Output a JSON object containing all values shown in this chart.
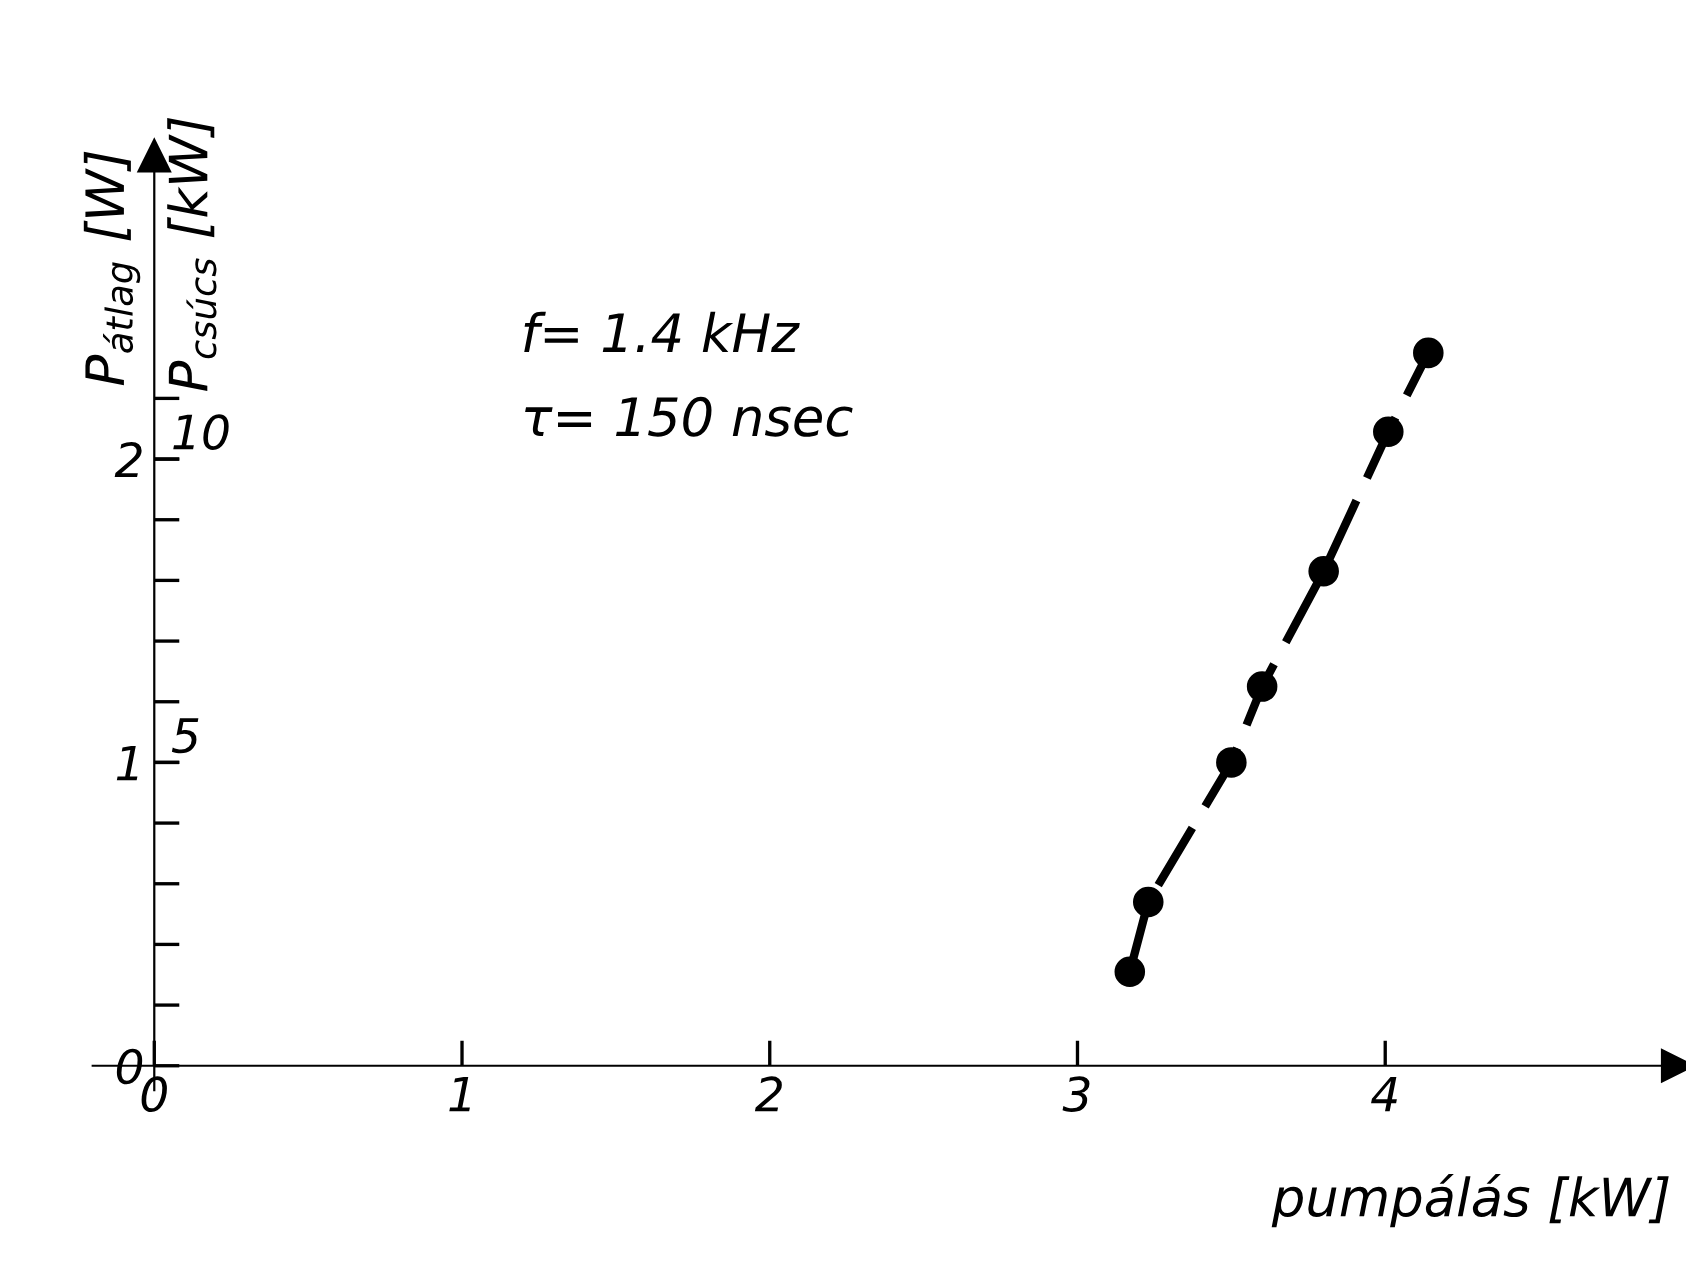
{
  "chart_data": {
    "type": "line",
    "xlabel": "pumpálás [kW]",
    "ylabel": "P$_{átlag}$ [W]",
    "y2label": "P$_{csúcs}$ [kW]",
    "annotations": [
      "f= 1.4 kHz",
      "τ= 150 nsec"
    ],
    "series": [
      {
        "color": "#000000",
        "x": [
          3.17,
          3.23,
          3.5,
          3.6,
          3.8,
          4.01,
          4.14
        ],
        "values": [
          0.31,
          0.54,
          1.0,
          1.25,
          1.63,
          2.09,
          2.35
        ]
      }
    ],
    "marker": "circle",
    "line_style": "dashed",
    "xlim": [
      -0.2,
      4.95
    ],
    "ylim": [
      -0.08,
      3.0
    ],
    "y2lim": [
      -0.4,
      15.0
    ],
    "xticks": [
      0,
      1,
      2,
      3,
      4
    ],
    "yticks": [
      0,
      {
        "value": 0.2,
        "label": null
      },
      {
        "value": 0.4,
        "label": null
      },
      {
        "value": 0.6,
        "label": null
      },
      {
        "value": 0.8,
        "label": null
      },
      1,
      {
        "value": 1.2,
        "label": null
      },
      {
        "value": 1.4,
        "label": null
      },
      {
        "value": 1.6,
        "label": null
      },
      {
        "value": 1.8,
        "label": null
      },
      2,
      {
        "value": 2.2,
        "label": null
      }
    ],
    "y2ticks": [
      5,
      10
    ],
    "grid": false,
    "legend": false
  }
}
